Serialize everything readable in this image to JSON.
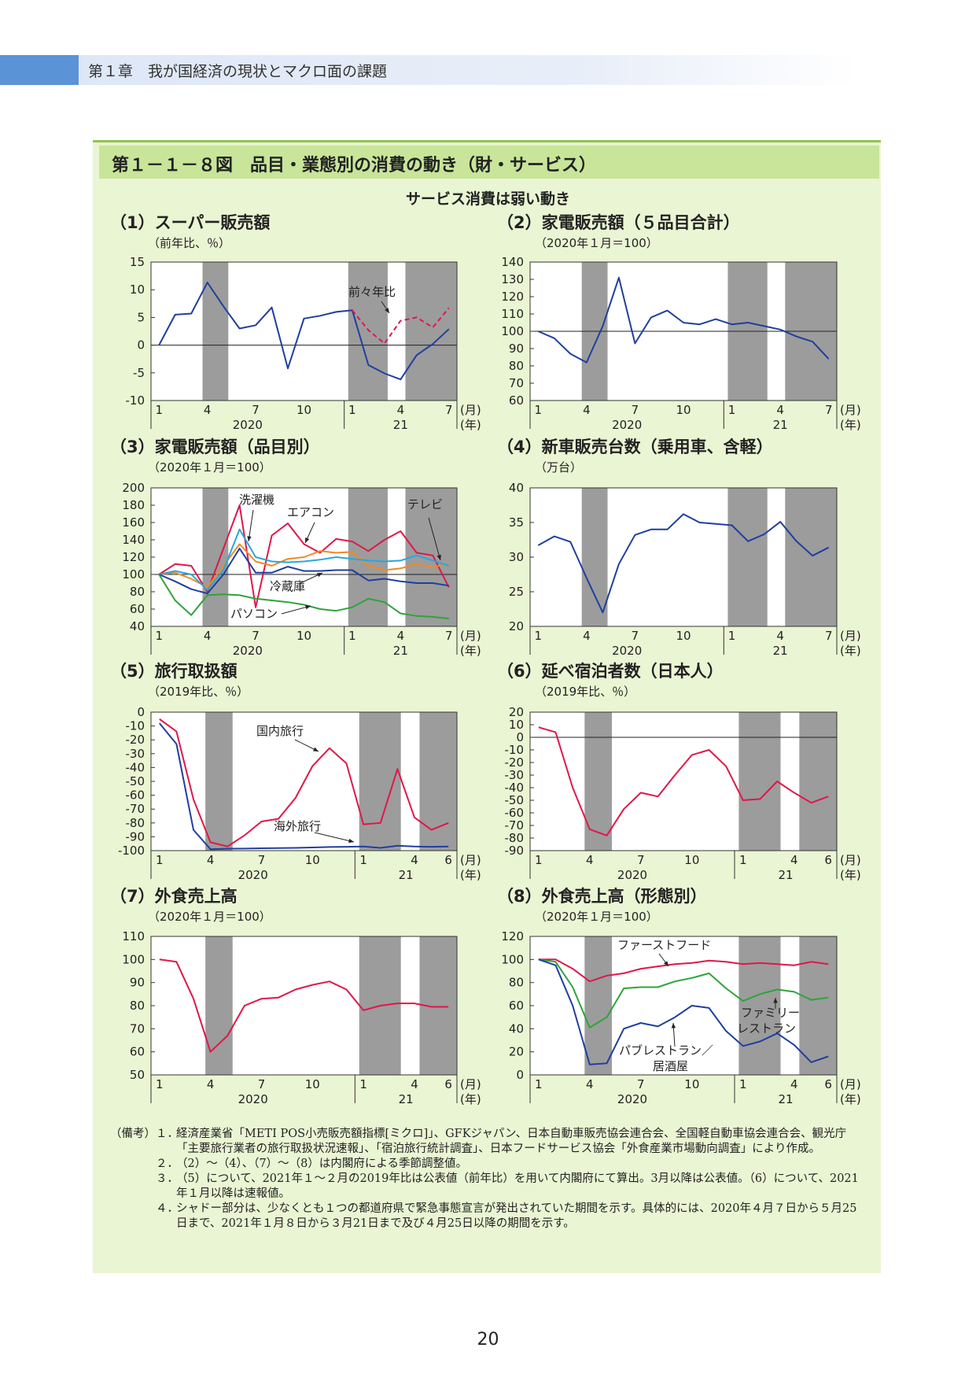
{
  "header": {
    "chapter": "第１章　我が国経済の現状とマクロ面の課題"
  },
  "figure": {
    "title": "第１－１－８図　品目・業態別の消費の動き（財・サービス）",
    "subtitle": "サービス消費は弱い動き"
  },
  "x_axis_common": {
    "month_unit": "(月)",
    "year_unit": "(年)",
    "year1": "2020",
    "year2": "21"
  },
  "colors": {
    "blue": "#1f3f9f",
    "red": "#e0174a",
    "orange": "#f08a22",
    "cyan": "#2aa6dc",
    "green": "#2ea43a",
    "shade": "#9c9c9c",
    "plot_bg": "#ffffff"
  },
  "chart_data": [
    {
      "id": "c1",
      "title": "（1）スーパー販売額",
      "type": "line",
      "unit": "（前年比、％）",
      "ylim": [
        -10,
        15
      ],
      "yticks": [
        15,
        10,
        5,
        0,
        -5,
        -10
      ],
      "zero_line": 0,
      "months": 19,
      "xtick_labels": [
        "1",
        "4",
        "7",
        "10",
        "1",
        "4",
        "7"
      ],
      "series": [
        {
          "color": "blue",
          "dash": false,
          "start": 1,
          "values": [
            0,
            5.5,
            5.7,
            11.3,
            7.0,
            3.0,
            3.6,
            6.8,
            -4.2,
            4.8,
            5.3,
            6.0,
            6.3,
            -3.6,
            -5.1,
            -6.2,
            -1.8,
            0.2,
            2.9
          ]
        },
        {
          "color": "red",
          "dash": true,
          "start": 13,
          "values": [
            6.3,
            2.7,
            0.3,
            4.4,
            5.0,
            3.2,
            6.7
          ]
        }
      ],
      "annotations": [
        {
          "text": "前々年比"
        }
      ]
    },
    {
      "id": "c2",
      "title": "（2）家電販売額（５品目合計）",
      "type": "line",
      "unit": "（2020年１月＝100）",
      "ylim": [
        60,
        140
      ],
      "yticks": [
        140,
        130,
        120,
        110,
        100,
        90,
        80,
        70,
        60
      ],
      "zero_line": 100,
      "months": 19,
      "xtick_labels": [
        "1",
        "4",
        "7",
        "10",
        "1",
        "4",
        "7"
      ],
      "series": [
        {
          "color": "blue",
          "dash": false,
          "start": 1,
          "values": [
            100,
            96,
            87,
            82,
            103,
            131,
            93,
            108,
            112,
            105,
            104,
            107,
            104,
            105,
            103,
            101,
            97,
            94,
            84
          ]
        }
      ],
      "annotations": []
    },
    {
      "id": "c3",
      "title": "（3）家電販売額（品目別）",
      "type": "line",
      "unit": "（2020年１月＝100）",
      "ylim": [
        40,
        200
      ],
      "yticks": [
        200,
        180,
        160,
        140,
        120,
        100,
        80,
        60,
        40
      ],
      "zero_line": 100,
      "months": 19,
      "xtick_labels": [
        "1",
        "4",
        "7",
        "10",
        "1",
        "4",
        "7"
      ],
      "series": [
        {
          "color": "red",
          "dash": false,
          "start": 1,
          "values": [
            100,
            112,
            110,
            80,
            130,
            180,
            62,
            145,
            159,
            135,
            125,
            141,
            138,
            127,
            140,
            150,
            125,
            122,
            85
          ]
        },
        {
          "color": "orange",
          "dash": false,
          "start": 1,
          "values": [
            100,
            102,
            95,
            85,
            110,
            135,
            115,
            110,
            118,
            120,
            127,
            125,
            126,
            110,
            105,
            107,
            112,
            108,
            113
          ]
        },
        {
          "color": "cyan",
          "dash": false,
          "start": 1,
          "values": [
            100,
            104,
            100,
            82,
            105,
            152,
            120,
            115,
            114,
            115,
            117,
            120,
            118,
            116,
            115,
            116,
            122,
            116,
            110
          ]
        },
        {
          "color": "blue",
          "dash": false,
          "start": 1,
          "values": [
            100,
            92,
            83,
            78,
            100,
            130,
            102,
            102,
            109,
            104,
            104,
            105,
            105,
            93,
            95,
            92,
            90,
            90,
            87
          ]
        },
        {
          "color": "green",
          "dash": false,
          "start": 1,
          "values": [
            100,
            70,
            53,
            76,
            77,
            76,
            72,
            70,
            68,
            65,
            60,
            58,
            62,
            72,
            68,
            55,
            52,
            51,
            49
          ]
        }
      ],
      "annotations": [
        {
          "text": "洗濯機"
        },
        {
          "text": "エアコン"
        },
        {
          "text": "テレビ"
        },
        {
          "text": "冷蔵庫"
        },
        {
          "text": "パソコン"
        }
      ]
    },
    {
      "id": "c4",
      "title": "（4）新車販売台数（乗用車、含軽）",
      "type": "line",
      "unit": "（万台）",
      "ylim": [
        20,
        40
      ],
      "yticks": [
        40,
        35,
        30,
        25,
        20
      ],
      "zero_line": null,
      "months": 19,
      "xtick_labels": [
        "1",
        "4",
        "7",
        "10",
        "1",
        "4",
        "7"
      ],
      "series": [
        {
          "color": "blue",
          "dash": false,
          "start": 1,
          "values": [
            31.7,
            33.0,
            32.2,
            27.0,
            22.0,
            29.0,
            33.2,
            34.0,
            34.0,
            36.2,
            35.0,
            34.8,
            34.6,
            32.3,
            33.3,
            35.1,
            32.3,
            30.2,
            31.4
          ]
        }
      ],
      "annotations": []
    },
    {
      "id": "c5",
      "title": "（5）旅行取扱額",
      "type": "line",
      "unit": "（2019年比、％）",
      "ylim": [
        -100,
        0
      ],
      "yticks": [
        0,
        -10,
        -20,
        -30,
        -40,
        -50,
        -60,
        -70,
        -80,
        -90,
        -100
      ],
      "zero_line": null,
      "months": 18,
      "xtick_labels": [
        "1",
        "4",
        "7",
        "10",
        "1",
        "4",
        "6"
      ],
      "series": [
        {
          "color": "red",
          "dash": false,
          "start": 1,
          "values": [
            -5,
            -14,
            -63,
            -94,
            -97,
            -89,
            -79,
            -77,
            -62,
            -39,
            -26,
            -37,
            -81,
            -80,
            -41,
            -76,
            -85,
            -80
          ]
        },
        {
          "color": "blue",
          "dash": false,
          "start": 1,
          "values": [
            -8,
            -23,
            -85,
            -99,
            -98.6,
            -98.5,
            -98.3,
            -98.2,
            -98,
            -97.7,
            -97.4,
            -97.2,
            -97,
            -98,
            -96.5,
            -97,
            -97.2,
            -97
          ]
        }
      ],
      "annotations": [
        {
          "text": "国内旅行"
        },
        {
          "text": "海外旅行"
        }
      ]
    },
    {
      "id": "c6",
      "title": "（6）延べ宿泊者数（日本人）",
      "type": "line",
      "unit": "（2019年比、％）",
      "ylim": [
        -90,
        20
      ],
      "yticks": [
        20,
        10,
        0,
        -10,
        -20,
        -30,
        -40,
        -50,
        -60,
        -70,
        -80,
        -90
      ],
      "zero_line": 0,
      "months": 18,
      "xtick_labels": [
        "1",
        "4",
        "7",
        "10",
        "1",
        "4",
        "6"
      ],
      "series": [
        {
          "color": "red",
          "dash": false,
          "start": 1,
          "values": [
            8,
            4,
            -40,
            -73,
            -78,
            -57,
            -44,
            -47,
            -30,
            -14,
            -10,
            -23,
            -50,
            -49,
            -35,
            -44,
            -52,
            -47
          ]
        }
      ],
      "annotations": []
    },
    {
      "id": "c7",
      "title": "（7）外食売上高",
      "type": "line",
      "unit": "（2020年１月＝100）",
      "ylim": [
        50,
        110
      ],
      "yticks": [
        110,
        100,
        90,
        80,
        70,
        60,
        50
      ],
      "zero_line": null,
      "months": 18,
      "xtick_labels": [
        "1",
        "4",
        "7",
        "10",
        "1",
        "4",
        "6"
      ],
      "series": [
        {
          "color": "red",
          "dash": false,
          "start": 1,
          "values": [
            100,
            99,
            83,
            60,
            67,
            80,
            83,
            83.5,
            87,
            89,
            90.5,
            87,
            78,
            80,
            81,
            81,
            79.5,
            79.5
          ]
        }
      ],
      "annotations": []
    },
    {
      "id": "c8",
      "title": "（8）外食売上高（形態別）",
      "type": "line",
      "unit": "（2020年１月＝100）",
      "ylim": [
        0,
        120
      ],
      "yticks": [
        120,
        100,
        80,
        60,
        40,
        20,
        0
      ],
      "zero_line": null,
      "months": 18,
      "xtick_labels": [
        "1",
        "4",
        "7",
        "10",
        "1",
        "4",
        "6"
      ],
      "series": [
        {
          "color": "red",
          "dash": false,
          "start": 1,
          "values": [
            100,
            100,
            92,
            81,
            86,
            88,
            92,
            94,
            96,
            97,
            99,
            98,
            96,
            97,
            96,
            95,
            98,
            96
          ]
        },
        {
          "color": "green",
          "dash": false,
          "start": 1,
          "values": [
            100,
            98,
            76,
            41,
            50,
            75,
            76,
            76,
            81,
            84,
            88,
            75,
            64,
            70,
            74,
            72,
            65,
            67
          ]
        },
        {
          "color": "blue",
          "dash": false,
          "start": 1,
          "values": [
            100,
            95,
            60,
            9,
            10,
            40,
            45,
            42,
            50,
            60,
            58,
            38,
            25,
            29,
            36,
            26,
            11,
            16
          ]
        }
      ],
      "annotations": [
        {
          "text": "ファーストフード"
        },
        {
          "text": "ファミリー"
        },
        {
          "text": "レストラン"
        },
        {
          "text": "パブレストラン／"
        },
        {
          "text": "居酒屋"
        }
      ]
    }
  ],
  "notes": {
    "head": "（備考）",
    "items": [
      {
        "num": "１．",
        "text": "経済産業省「METI POS小売販売額指標[ミクロ]」、GFKジャパン、日本自動車販売協会連合会、全国軽自動車協会連合会、観光庁「主要旅行業者の旅行取扱状況速報」、「宿泊旅行統計調査」、日本フードサービス協会「外食産業市場動向調査」により作成。"
      },
      {
        "num": "２．",
        "text": "（2）～（4）、（7）～（8）は内閣府による季節調整値。"
      },
      {
        "num": "３．",
        "text": "（5）について、2021年１～２月の2019年比は公表値（前年比）を用いて内閣府にて算出。3月以降は公表値。（6）について、2021年１月以降は速報値。"
      },
      {
        "num": "４．",
        "text": "シャドー部分は、少なくとも１つの都道府県で緊急事態宣言が発出されていた期間を示す。具体的には、2020年４月７日から５月25日まで、2021年１月８日から３月21日まで及び４月25日以降の期間を示す。"
      }
    ]
  },
  "page_number": "20"
}
